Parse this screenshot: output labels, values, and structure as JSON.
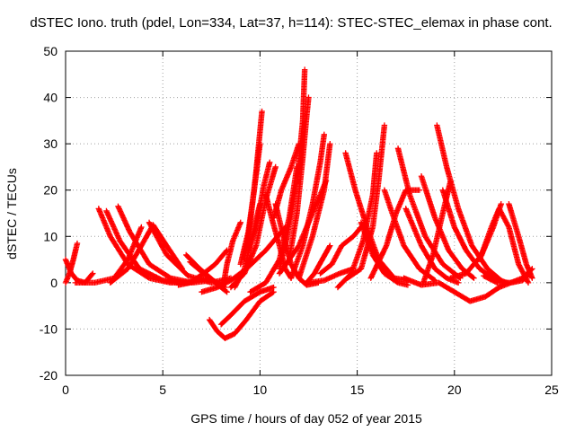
{
  "chart_data": {
    "type": "scatter",
    "title": "dSTEC Iono. truth (pdel, Lon=334, Lat=37, h=114): STEC-STEC_elemax in phase cont.",
    "xlabel": "GPS time / hours of day 052 of year 2015",
    "ylabel": "dSTEC  / TECUs",
    "xlim": [
      0,
      25
    ],
    "ylim": [
      -20,
      50
    ],
    "xticks": [
      0,
      5,
      10,
      15,
      20,
      25
    ],
    "yticks": [
      -20,
      -10,
      0,
      10,
      20,
      30,
      40,
      50
    ],
    "grid": true,
    "marker": "plus",
    "color": "#ff0000",
    "arcs": [
      {
        "x": [
          0.0,
          0.3,
          0.6,
          1.0,
          1.4
        ],
        "y": [
          5,
          2,
          0.5,
          0,
          2
        ]
      },
      {
        "x": [
          0.0,
          0.2,
          0.4,
          0.6
        ],
        "y": [
          0,
          2,
          5,
          8.5
        ]
      },
      {
        "x": [
          0.5,
          1.5,
          2.5,
          3.2,
          3.9
        ],
        "y": [
          0,
          0,
          1,
          5,
          12
        ]
      },
      {
        "x": [
          1.7,
          2.3,
          3.2,
          4.3,
          5.4,
          6.2
        ],
        "y": [
          16,
          10,
          4,
          1,
          0,
          0
        ]
      },
      {
        "x": [
          2.1,
          2.8,
          3.8,
          5.0,
          6.3,
          7.3
        ],
        "y": [
          15.5,
          9,
          3,
          0.5,
          0,
          1
        ]
      },
      {
        "x": [
          2.7,
          3.3,
          4.3,
          5.4,
          6.5,
          7.5
        ],
        "y": [
          16.5,
          11,
          4,
          1,
          0,
          0.5
        ]
      },
      {
        "x": [
          2.3,
          3.2,
          3.9,
          4.5,
          5.2,
          6.0
        ],
        "y": [
          0,
          3,
          8,
          12.5,
          8,
          3
        ]
      },
      {
        "x": [
          4.3,
          5.2,
          6.3,
          7.5,
          8.5
        ],
        "y": [
          13,
          6,
          1.5,
          0,
          1
        ]
      },
      {
        "x": [
          5.8,
          6.4,
          7.1,
          7.7,
          8.3
        ],
        "y": [
          -0.5,
          0,
          2,
          4,
          7
        ]
      },
      {
        "x": [
          6.2,
          6.9,
          7.6,
          8.2
        ],
        "y": [
          6,
          3,
          0.5,
          -1
        ]
      },
      {
        "x": [
          6.4,
          7.1,
          7.7,
          8.3
        ],
        "y": [
          4.5,
          2,
          0,
          -2
        ]
      },
      {
        "x": [
          7.0,
          7.8,
          8.5,
          9.3,
          10.3,
          11.3
        ],
        "y": [
          -2,
          -1,
          0.5,
          3,
          7,
          12
        ]
      },
      {
        "x": [
          7.4,
          7.8,
          8.2,
          8.7,
          9.3,
          10.0,
          10.7
        ],
        "y": [
          -8,
          -10.5,
          -12,
          -11,
          -8,
          -4,
          -2
        ]
      },
      {
        "x": [
          8.0,
          8.5,
          9.2,
          10.0,
          10.7
        ],
        "y": [
          -9,
          -7,
          -4,
          -2,
          -1
        ]
      },
      {
        "x": [
          8.1,
          8.3,
          8.6,
          9.0
        ],
        "y": [
          -1,
          4,
          9,
          13
        ]
      },
      {
        "x": [
          8.7,
          9.2,
          9.6,
          10.0
        ],
        "y": [
          -1,
          3,
          10,
          17
        ]
      },
      {
        "x": [
          9.0,
          9.4,
          9.7,
          10.0
        ],
        "y": [
          4,
          11,
          20,
          30
        ]
      },
      {
        "x": [
          9.2,
          9.5,
          9.8,
          10.1
        ],
        "y": [
          5,
          13,
          24,
          37
        ]
      },
      {
        "x": [
          8.5,
          9.2,
          9.8,
          10.3,
          10.8
        ],
        "y": [
          -1,
          2,
          8,
          18,
          25
        ]
      },
      {
        "x": [
          9.4,
          9.8,
          10.2,
          10.5
        ],
        "y": [
          7,
          12,
          21,
          26
        ]
      },
      {
        "x": [
          10.3,
          10.6,
          11.0,
          11.3,
          11.6
        ],
        "y": [
          19,
          14,
          8,
          3,
          1
        ]
      },
      {
        "x": [
          10.8,
          11.2,
          11.6,
          12.0,
          12.4,
          13.0
        ],
        "y": [
          17,
          10,
          4,
          1,
          -0.5,
          0
        ]
      },
      {
        "x": [
          10.7,
          11.1,
          11.6,
          12.0
        ],
        "y": [
          14,
          20,
          25,
          30
        ]
      },
      {
        "x": [
          9.5,
          10.3,
          11.0,
          11.5,
          11.9
        ],
        "y": [
          -2,
          0,
          5,
          14,
          25
        ]
      },
      {
        "x": [
          11.0,
          11.4,
          11.9,
          12.2,
          12.3
        ],
        "y": [
          3,
          10,
          22,
          35,
          46
        ]
      },
      {
        "x": [
          11.5,
          11.9,
          12.2,
          12.4,
          12.5
        ],
        "y": [
          5,
          15,
          27,
          36,
          40
        ]
      },
      {
        "x": [
          11.0,
          12.0,
          12.8,
          13.4
        ],
        "y": [
          2,
          8,
          16,
          22
        ]
      },
      {
        "x": [
          11.6,
          12.2,
          12.7,
          13.1,
          13.3
        ],
        "y": [
          1,
          8,
          17,
          26,
          32
        ]
      },
      {
        "x": [
          12.0,
          12.7,
          13.3,
          13.6
        ],
        "y": [
          1,
          10,
          20,
          30
        ]
      },
      {
        "x": [
          12.4,
          12.8,
          13.2,
          13.6
        ],
        "y": [
          0,
          2,
          5,
          8
        ]
      },
      {
        "x": [
          13.1,
          13.7,
          14.2,
          14.8,
          15.4
        ],
        "y": [
          2,
          4,
          8,
          10,
          13
        ]
      },
      {
        "x": [
          12.5,
          13.3,
          14.1,
          14.8
        ],
        "y": [
          0,
          0.5,
          2,
          3
        ]
      },
      {
        "x": [
          14.4,
          14.9,
          15.5,
          16.1,
          16.9,
          17.6
        ],
        "y": [
          28,
          20,
          12,
          5,
          1,
          0.5
        ]
      },
      {
        "x": [
          14.0,
          14.7,
          15.3,
          15.8,
          16.0
        ],
        "y": [
          -1,
          2,
          9,
          19,
          28
        ]
      },
      {
        "x": [
          14.5,
          15.2,
          15.8,
          16.1,
          16.4
        ],
        "y": [
          1,
          3,
          12,
          22,
          34
        ]
      },
      {
        "x": [
          15.2,
          15.8,
          16.4,
          17.1,
          17.6
        ],
        "y": [
          13,
          6,
          2,
          0,
          -0.5
        ]
      },
      {
        "x": [
          15.7,
          16.5,
          17.0,
          17.5,
          18.2
        ],
        "y": [
          1,
          8,
          15,
          20,
          20
        ]
      },
      {
        "x": [
          16.4,
          16.8,
          17.4,
          18.2,
          19.0
        ],
        "y": [
          20,
          15,
          8,
          3,
          0.5
        ]
      },
      {
        "x": [
          17.1,
          17.7,
          18.5,
          19.4,
          20.3
        ],
        "y": [
          29,
          19,
          10,
          4,
          1
        ]
      },
      {
        "x": [
          17.5,
          18.3,
          19.0,
          19.6,
          20.2
        ],
        "y": [
          16,
          8,
          3,
          1,
          0
        ]
      },
      {
        "x": [
          18.3,
          19.0,
          19.7,
          20.4,
          21.0
        ],
        "y": [
          23,
          14,
          7,
          3,
          1
        ]
      },
      {
        "x": [
          19.1,
          19.6,
          20.2,
          20.9,
          21.7,
          22.4
        ],
        "y": [
          34,
          25,
          16,
          8,
          3,
          0.5
        ]
      },
      {
        "x": [
          19.4,
          20.0,
          20.6,
          21.3,
          22.0,
          22.7
        ],
        "y": [
          20,
          12,
          7,
          3,
          1,
          0
        ]
      },
      {
        "x": [
          18.4,
          18.9,
          19.4,
          19.8
        ],
        "y": [
          0,
          6,
          15,
          22
        ]
      },
      {
        "x": [
          17.4,
          18.3,
          19.2,
          20.0,
          20.8,
          21.6,
          22.3
        ],
        "y": [
          1,
          -0.5,
          0,
          -2,
          -4,
          -3,
          -1
        ]
      },
      {
        "x": [
          19.8,
          20.6,
          21.4,
          22.0,
          22.4
        ],
        "y": [
          1,
          2,
          6,
          12,
          17
        ]
      },
      {
        "x": [
          21.3,
          21.9,
          22.3,
          22.8,
          23.3,
          23.8
        ],
        "y": [
          5,
          12,
          16,
          12,
          4,
          0
        ]
      },
      {
        "x": [
          22.3,
          22.9,
          23.5,
          24.0
        ],
        "y": [
          -1,
          0,
          1,
          3
        ]
      },
      {
        "x": [
          22.8,
          23.3,
          23.7,
          24.0
        ],
        "y": [
          17,
          10,
          4,
          1
        ]
      },
      {
        "x": [
          21.5,
          22.2,
          22.9,
          23.5,
          23.9
        ],
        "y": [
          1.5,
          0,
          0,
          0.5,
          2
        ]
      }
    ]
  }
}
